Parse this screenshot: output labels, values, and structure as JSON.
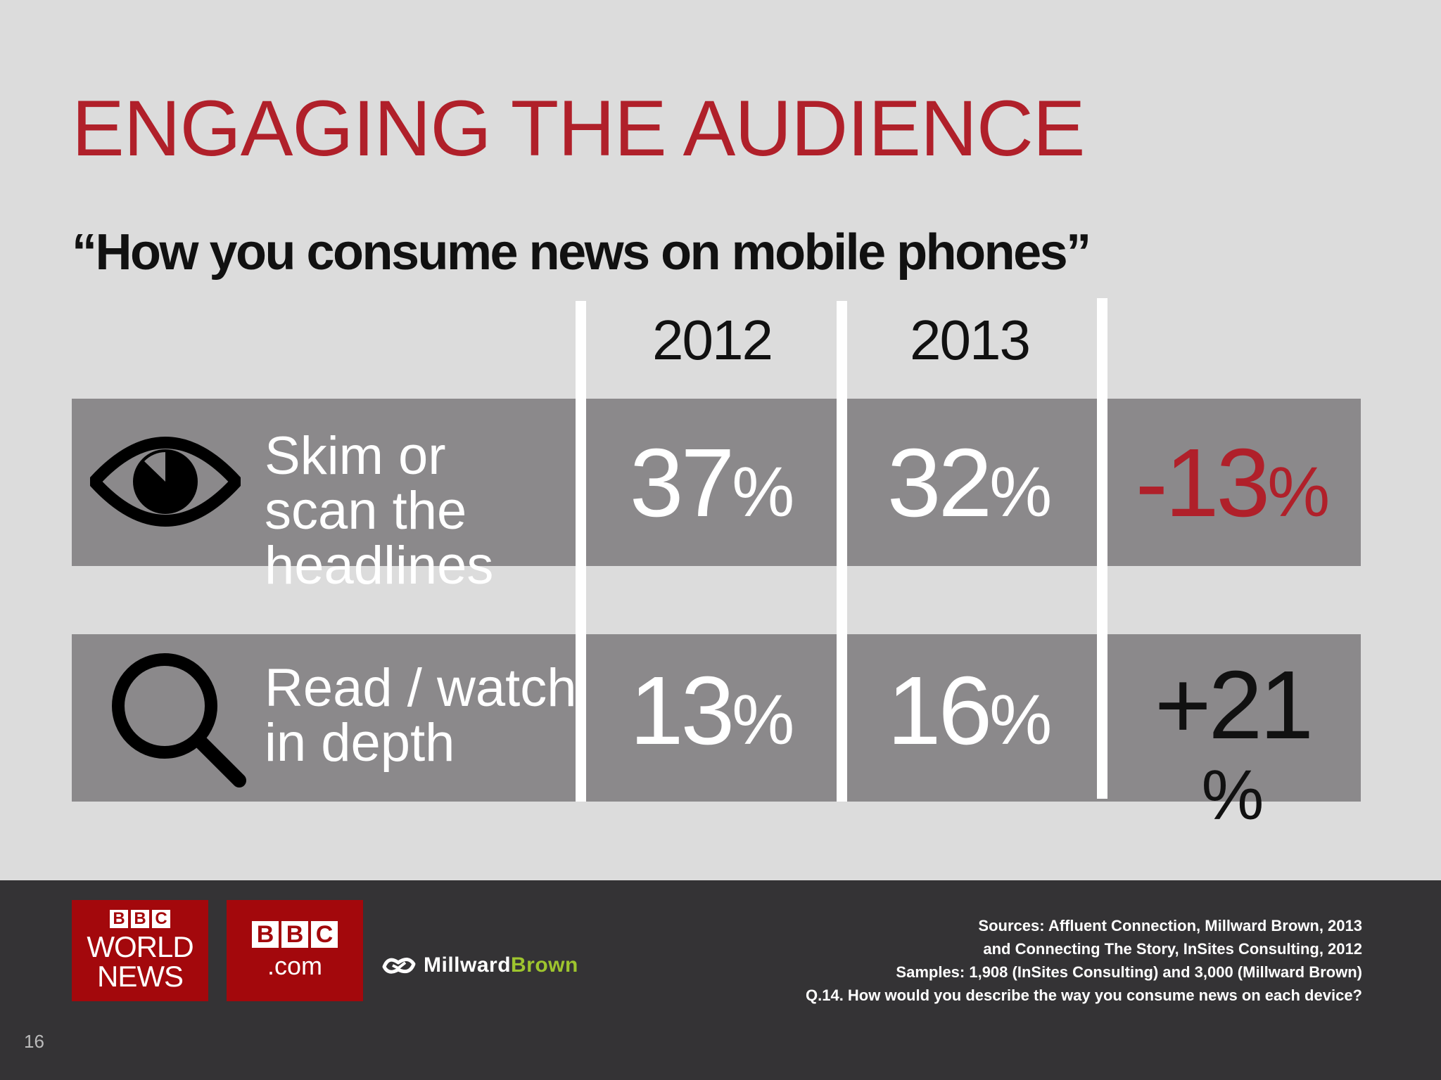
{
  "slide": {
    "title": "ENGAGING THE AUDIENCE",
    "subtitle": "“How you consume news on mobile phones”",
    "page_number": "16"
  },
  "table": {
    "year_headers": [
      "2012",
      "2013"
    ],
    "rows": [
      {
        "icon": "eye-icon",
        "label_lines": [
          "Skim or",
          "scan the",
          "headlines"
        ],
        "value_2012": "37",
        "value_2013": "32",
        "change": "-13",
        "unit": "%"
      },
      {
        "icon": "magnifier-icon",
        "label_lines": [
          "Read / watch",
          "in depth"
        ],
        "value_2012": "13",
        "value_2013": "16",
        "change": "+21",
        "unit": "%"
      }
    ]
  },
  "footer": {
    "logos": {
      "bbc_letters": [
        "B",
        "B",
        "C"
      ],
      "world_news": [
        "WORLD",
        "NEWS"
      ],
      "dot_com": ".com",
      "millward": "Millward",
      "brown": "Brown"
    },
    "sources": [
      "Sources:  Affluent Connection, Millward Brown, 2013",
      "and Connecting The Story, InSites Consulting, 2012",
      "Samples: 1,908 (InSites Consulting) and 3,000 (Millward Brown)",
      "Q.14. How would you describe the way you consume news on each device?"
    ]
  },
  "colors": {
    "accent_red": "#b0202a",
    "band_gray": "#8b898b",
    "background": "#dcdcdc",
    "footer": "#343335",
    "bbc_red": "#a3080c",
    "millward_green": "#9ec52e"
  }
}
